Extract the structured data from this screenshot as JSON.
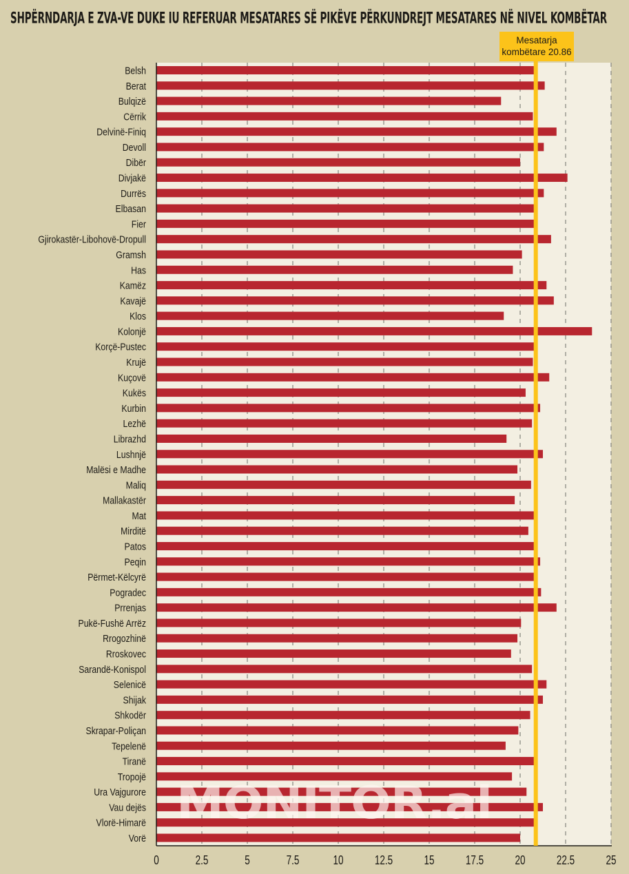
{
  "chart_data": {
    "type": "bar",
    "orientation": "horizontal",
    "title": "SHPËRNDARJA E ZVA-VE DUKE IU REFERUAR MESATARES SË PIKËVE PËRKUNDREJT MESATARES NË NIVEL KOMBËTAR",
    "xlabel": "",
    "ylabel": "",
    "xlim": [
      0,
      25
    ],
    "xticks": [
      0,
      2.5,
      5,
      7.5,
      10,
      12.5,
      15,
      17.5,
      20,
      22.5,
      25
    ],
    "xtick_labels": [
      "0",
      "2.5",
      "5",
      "7.5",
      "10",
      "12.5",
      "15",
      "17.5",
      "20",
      "22.5",
      "25"
    ],
    "grid": "vertical-dashed",
    "bar_color": "#b8262f",
    "reference_line": {
      "value": 20.86,
      "label_line1": "Mesatarja",
      "label_line2": "kombëtare 20.86",
      "color": "#fcc31a"
    },
    "watermark": "MONITOR.al",
    "categories": [
      "Belsh",
      "Berat",
      "Bulqizë",
      "Cërrik",
      "Delvinë-Finiq",
      "Devoll",
      "Dibër",
      "Divjakë",
      "Durrës",
      "Elbasan",
      "Fier",
      "Gjirokastër-Libohovë-Dropull",
      "Gramsh",
      "Has",
      "Kamëz",
      "Kavajë",
      "Klos",
      "Kolonjë",
      "Korçë-Pustec",
      "Krujë",
      "Kuçovë",
      "Kukës",
      "Kurbin",
      "Lezhë",
      "Librazhd",
      "Lushnjë",
      "Malësi e Madhe",
      "Maliq",
      "Mallakastër",
      "Mat",
      "Mirditë",
      "Patos",
      "Peqin",
      "Përmet-Këlcyrë",
      "Pogradec",
      "Prrenjas",
      "Pukë-Fushë Arrëz",
      "Rrogozhinë",
      "Rroskovec",
      "Sarandë-Konispol",
      "Selenicë",
      "Shijak",
      "Shkodër",
      "Skrapar-Poliçan",
      "Tepelenë",
      "Tiranë",
      "Tropojë",
      "Ura Vajgurore",
      "Vau dejës",
      "Vlorë-Himarë",
      "Vorë"
    ],
    "values": [
      20.8,
      21.35,
      18.95,
      20.7,
      22.0,
      21.3,
      20.0,
      22.6,
      21.3,
      20.8,
      20.8,
      21.7,
      20.1,
      19.6,
      21.45,
      21.85,
      19.1,
      23.95,
      20.8,
      20.7,
      21.6,
      20.3,
      21.1,
      20.65,
      19.25,
      21.25,
      19.85,
      20.6,
      19.7,
      20.8,
      20.45,
      20.8,
      21.1,
      20.8,
      21.15,
      22.0,
      20.05,
      19.85,
      19.5,
      20.65,
      21.45,
      21.25,
      20.55,
      19.9,
      19.2,
      20.8,
      19.55,
      20.35,
      21.25,
      20.8,
      20.0
    ]
  }
}
